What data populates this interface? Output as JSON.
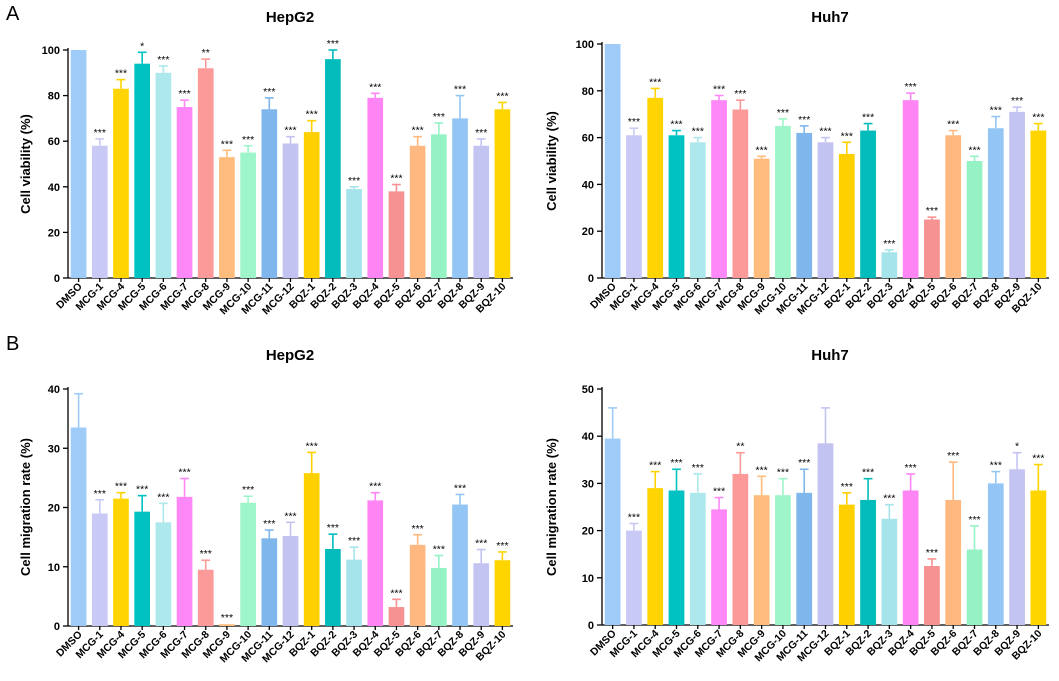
{
  "panels": [
    {
      "letter": "A"
    },
    {
      "letter": "B"
    }
  ],
  "colors": [
    "#9fcbf8",
    "#c9c9f5",
    "#ffd400",
    "#00c2c2",
    "#ade8ec",
    "#ff88f8",
    "#fc9a9a",
    "#ffbc7c",
    "#9df5c9",
    "#7fb6ec",
    "#c3c3f2",
    "#ffd000",
    "#02bcbc",
    "#a5e4ea",
    "#ff85f5",
    "#f79292",
    "#ffb880",
    "#95f2c5",
    "#93c5f5",
    "#c4c4f3",
    "#ffd500"
  ],
  "chart_data": [
    {
      "type": "bar",
      "title": "HepG2",
      "xlabel": "",
      "ylabel": "Cell viability (%)",
      "ylim": [
        0,
        100
      ],
      "yticks": [
        "0",
        "20",
        "40",
        "60",
        "80",
        "100"
      ],
      "categories": [
        "DMSO",
        "MCG-1",
        "MCG-4",
        "MCG-5",
        "MCG-6",
        "MCG-7",
        "MCG-8",
        "MCG-9",
        "MCG-10",
        "MCG-11",
        "MCG-12",
        "BQZ-1",
        "BQZ-2",
        "BQZ-3",
        "BQZ-4",
        "BQZ-5",
        "BQZ-6",
        "BQZ-7",
        "BQZ-8",
        "BQZ-9",
        "BQZ-10"
      ],
      "values": [
        100,
        58,
        83,
        94,
        90,
        75,
        92,
        53,
        55,
        74,
        59,
        64,
        96,
        39,
        79,
        38,
        58,
        63,
        70,
        58,
        74
      ],
      "errors": [
        0,
        3,
        4,
        5,
        3,
        3,
        4,
        3,
        3,
        5,
        3,
        5,
        4,
        1,
        2,
        3,
        4,
        5,
        10,
        3,
        3
      ],
      "significance": [
        "",
        "***",
        "***",
        "*",
        "***",
        "***",
        "**",
        "***",
        "***",
        "***",
        "***",
        "***",
        "***",
        "***",
        "***",
        "***",
        "***",
        "***",
        "***",
        "***",
        "***"
      ]
    },
    {
      "type": "bar",
      "title": "Huh7",
      "xlabel": "",
      "ylabel": "Cell viability (%)",
      "ylim": [
        0,
        100
      ],
      "yticks": [
        "0",
        "20",
        "40",
        "60",
        "80",
        "100"
      ],
      "categories": [
        "DMSO",
        "MCG-1",
        "MCG-4",
        "MCG-5",
        "MCG-6",
        "MCG-7",
        "MCG-8",
        "MCG-9",
        "MCG-10",
        "MCG-11",
        "MCG-12",
        "BQZ-1",
        "BQZ-2",
        "BQZ-3",
        "BQZ-4",
        "BQZ-5",
        "BQZ-6",
        "BQZ-7",
        "BQZ-8",
        "BQZ-9",
        "BQZ-10"
      ],
      "values": [
        100,
        61,
        77,
        61,
        58,
        76,
        72,
        51,
        65,
        62,
        58,
        53,
        63,
        11,
        76,
        25,
        61,
        50,
        64,
        71,
        63
      ],
      "errors": [
        0,
        3,
        4,
        2,
        2,
        2,
        4,
        1,
        3,
        3,
        2,
        5,
        3,
        1,
        3,
        1,
        2,
        2,
        5,
        2,
        3
      ],
      "significance": [
        "",
        "***",
        "***",
        "***",
        "***",
        "***",
        "***",
        "***",
        "***",
        "***",
        "***",
        "***",
        "***",
        "***",
        "***",
        "***",
        "***",
        "***",
        "***",
        "***",
        "***"
      ]
    },
    {
      "type": "bar",
      "title": "HepG2",
      "xlabel": "",
      "ylabel": "Cell migration rate  (%)",
      "ylim": [
        0,
        40
      ],
      "yticks": [
        "0",
        "10",
        "20",
        "30",
        "40"
      ],
      "categories": [
        "DMSO",
        "MCG-1",
        "MCG-4",
        "MCG-5",
        "MCG-6",
        "MCG-7",
        "MCG-8",
        "MCG-9",
        "MCG-10",
        "MCG-11",
        "MCG-12",
        "BQZ-1",
        "BQZ-2",
        "BQZ-3",
        "BQZ-4",
        "BQZ-5",
        "BQZ-6",
        "BQZ-7",
        "BQZ-8",
        "BQZ-9",
        "BQZ-10"
      ],
      "values": [
        33.5,
        19,
        21.5,
        19.3,
        17.5,
        21.8,
        9.5,
        0.3,
        20.8,
        14.8,
        15.2,
        25.8,
        13,
        11.2,
        21.2,
        3.2,
        13.7,
        9.8,
        20.5,
        10.6,
        11.1
      ],
      "errors": [
        5.7,
        2.3,
        1,
        2.7,
        3.2,
        3.1,
        1.6,
        0,
        1.1,
        1.4,
        2.3,
        3.5,
        2.5,
        2.1,
        1.3,
        1.3,
        1.7,
        2.1,
        1.7,
        2.3,
        1.4
      ],
      "significance": [
        "",
        "***",
        "***",
        "***",
        "***",
        "***",
        "***",
        "***",
        "***",
        "***",
        "***",
        "***",
        "***",
        "***",
        "***",
        "***",
        "***",
        "***",
        "***",
        "***",
        "***"
      ]
    },
    {
      "type": "bar",
      "title": "Huh7",
      "xlabel": "",
      "ylabel": "Cell migration rate (%)",
      "ylim": [
        0,
        50
      ],
      "yticks": [
        "0",
        "10",
        "20",
        "30",
        "40",
        "50"
      ],
      "categories": [
        "DMSO",
        "MCG-1",
        "MCG-4",
        "MCG-5",
        "MCG-6",
        "MCG-7",
        "MCG-8",
        "MCG-9",
        "MCG-10",
        "MCG-11",
        "MCG-12",
        "BQZ-1",
        "BQZ-2",
        "BQZ-3",
        "BQZ-4",
        "BQZ-5",
        "BQZ-6",
        "BQZ-7",
        "BQZ-8",
        "BQZ-9",
        "BQZ-10"
      ],
      "values": [
        39.5,
        20,
        29,
        28.5,
        28,
        24.5,
        32,
        27.5,
        27.5,
        28,
        38.5,
        25.5,
        26.5,
        22.5,
        28.5,
        12.5,
        26.5,
        16,
        30,
        33,
        28.5
      ],
      "errors": [
        6.5,
        1.5,
        3.5,
        4.5,
        4,
        2.5,
        4.5,
        4,
        3.5,
        5,
        7.5,
        2.5,
        4.5,
        3,
        3.5,
        1.5,
        8,
        5,
        2.5,
        3.5,
        5.5
      ],
      "significance": [
        "",
        "***",
        "***",
        "***",
        "***",
        "***",
        "**",
        "***",
        "***",
        "***",
        "",
        "***",
        "***",
        "***",
        "***",
        "***",
        "***",
        "***",
        "***",
        "*",
        "***"
      ]
    }
  ]
}
